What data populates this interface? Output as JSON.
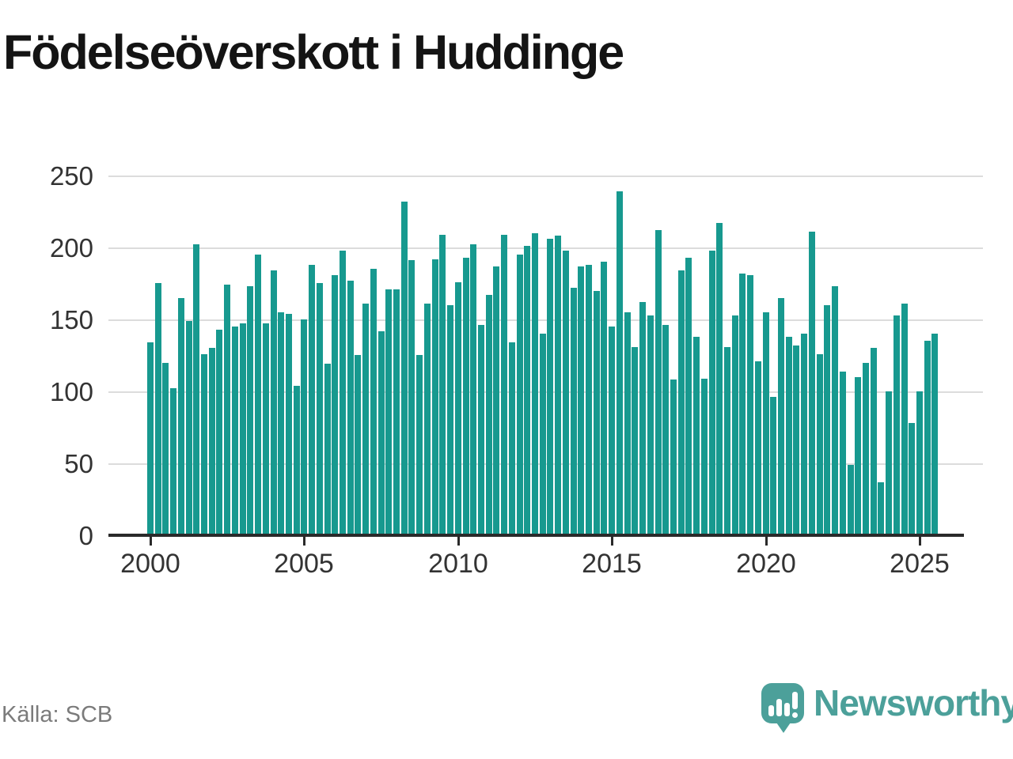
{
  "header": {
    "title": "Födelseöverskott i Huddinge"
  },
  "footer": {
    "source": "Källa: SCB",
    "logo_brand": "Newsworthy"
  },
  "colors": {
    "bar": "#17998F",
    "title": "#141414",
    "axis_labels": "#333333",
    "gridline": "#dcdcdc",
    "axis_line": "#2a2a2a",
    "source_text": "#7b7b7b",
    "logo_teal": "#4CA09A"
  },
  "chart_data": {
    "type": "bar",
    "title": "Födelseöverskott i Huddinge",
    "frequency": "quarterly",
    "x_start": "2000-Q1",
    "x_end": "2025-Q3",
    "x_tick_labels": [
      "2000",
      "2005",
      "2010",
      "2015",
      "2020",
      "2025"
    ],
    "ylim": [
      0,
      250
    ],
    "yticks": [
      0,
      50,
      100,
      150,
      200,
      250
    ],
    "grid": "horizontal",
    "legend": "none",
    "series": [
      {
        "name": "Födelseöverskott",
        "values": [
          134,
          175,
          120,
          102,
          165,
          149,
          202,
          126,
          130,
          143,
          174,
          145,
          147,
          173,
          195,
          147,
          184,
          155,
          154,
          104,
          150,
          188,
          175,
          119,
          181,
          198,
          177,
          125,
          161,
          185,
          142,
          171,
          171,
          232,
          191,
          125,
          161,
          192,
          209,
          160,
          176,
          193,
          202,
          146,
          167,
          187,
          209,
          134,
          195,
          201,
          210,
          140,
          206,
          208,
          198,
          172,
          187,
          188,
          170,
          190,
          145,
          239,
          155,
          131,
          162,
          153,
          212,
          146,
          108,
          184,
          193,
          138,
          109,
          198,
          217,
          131,
          153,
          182,
          181,
          121,
          155,
          96,
          165,
          138,
          132,
          140,
          211,
          126,
          160,
          173,
          114,
          49,
          110,
          120,
          130,
          37,
          100,
          153,
          161,
          78,
          100,
          135,
          140
        ]
      }
    ]
  }
}
